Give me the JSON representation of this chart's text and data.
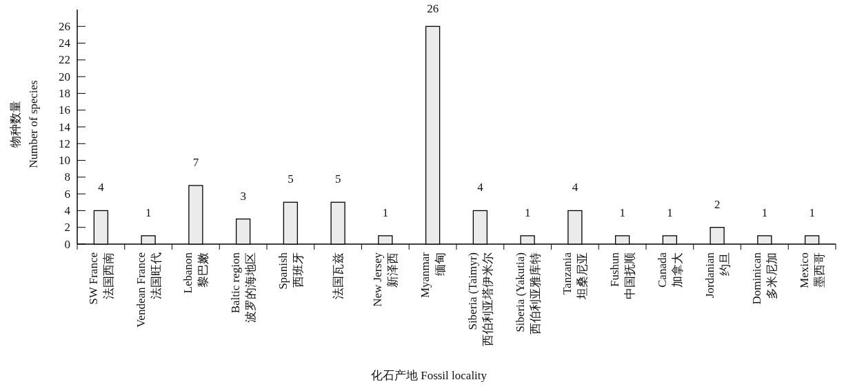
{
  "chart_data": {
    "type": "bar",
    "ylabel": "物种数量\nNumber of species",
    "xlabel": "化石产地 Fossil locality",
    "categories": [
      "SW France\n法国西南",
      "Vendean France\n法国旺代",
      "Lebanon\n黎巴嫩",
      "Baltic region\n波罗的海地区",
      "Spanish\n西班牙",
      "法国瓦兹",
      "New Jersey\n新泽西",
      "Myanmar\n缅甸",
      "Siberia (Taimyr)\n西伯利亚塔伊米尔",
      "Siberia (Yakutia)\n西伯利亚雅库特",
      "Tanzania\n坦桑尼亚",
      "Fushun\n中国抚顺",
      "Canada\n加拿大",
      "Jordanian\n约旦",
      "Dominican\n多米尼加",
      "Mexico\n墨西哥"
    ],
    "values": [
      4,
      1,
      7,
      3,
      5,
      5,
      1,
      26,
      4,
      1,
      4,
      1,
      1,
      2,
      1,
      1
    ],
    "color": "#ebebeb",
    "ylim": [
      0,
      28
    ],
    "yticks": [
      0,
      2,
      4,
      6,
      8,
      10,
      12,
      14,
      16,
      18,
      20,
      22,
      24,
      26
    ],
    "data_labels": true,
    "grid": false
  }
}
